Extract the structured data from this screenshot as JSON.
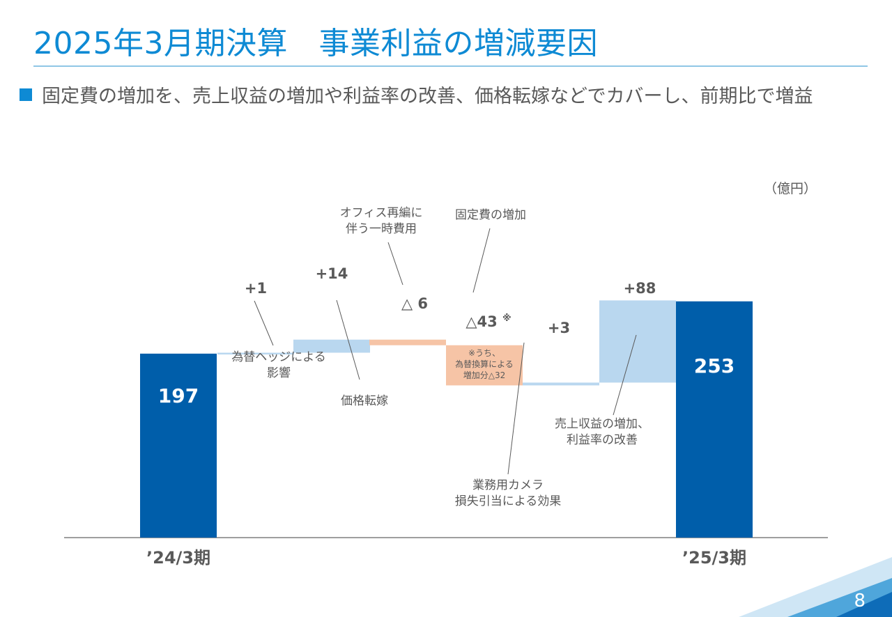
{
  "header": {
    "title": "2025年3月期決算　事業利益の増減要因",
    "subtitle": "固定費の増加を、売上収益の増加や利益率の改善、価格転嫁などでカバーし、前期比で増益"
  },
  "unit_label": "（億円）",
  "slide_number": "8",
  "colors": {
    "title": "#0e8ad4",
    "total_bar": "#005eaa",
    "increase_bar": "#b9d7ef",
    "decrease_bar": "#f6c4a6",
    "text": "#595959"
  },
  "chart_data": {
    "type": "bar",
    "subtype": "waterfall",
    "ylim": [
      0,
      260
    ],
    "steps": [
      {
        "kind": "total",
        "category": "’24/3期",
        "value": 197,
        "label": "197"
      },
      {
        "kind": "delta",
        "value": 1,
        "label": "+1",
        "annotation": "為替ヘッジによる\n影響"
      },
      {
        "kind": "delta",
        "value": 14,
        "label": "+14",
        "annotation": "価格転嫁"
      },
      {
        "kind": "delta",
        "value": -6,
        "label": "△ 6",
        "annotation": "オフィス再編に\n伴う一時費用"
      },
      {
        "kind": "delta",
        "value": -43,
        "label": "△43",
        "label_mark": "※",
        "annotation": "固定費の増加",
        "footnote": "※うち、\n為替換算による\n増加分△32"
      },
      {
        "kind": "delta",
        "value": 3,
        "label": "+3",
        "annotation": "業務用カメラ\n損失引当による効果"
      },
      {
        "kind": "delta",
        "value": 88,
        "label": "+88",
        "annotation": "売上収益の増加、\n利益率の改善"
      },
      {
        "kind": "total",
        "category": "’25/3期",
        "value": 253,
        "label": "253"
      }
    ]
  }
}
